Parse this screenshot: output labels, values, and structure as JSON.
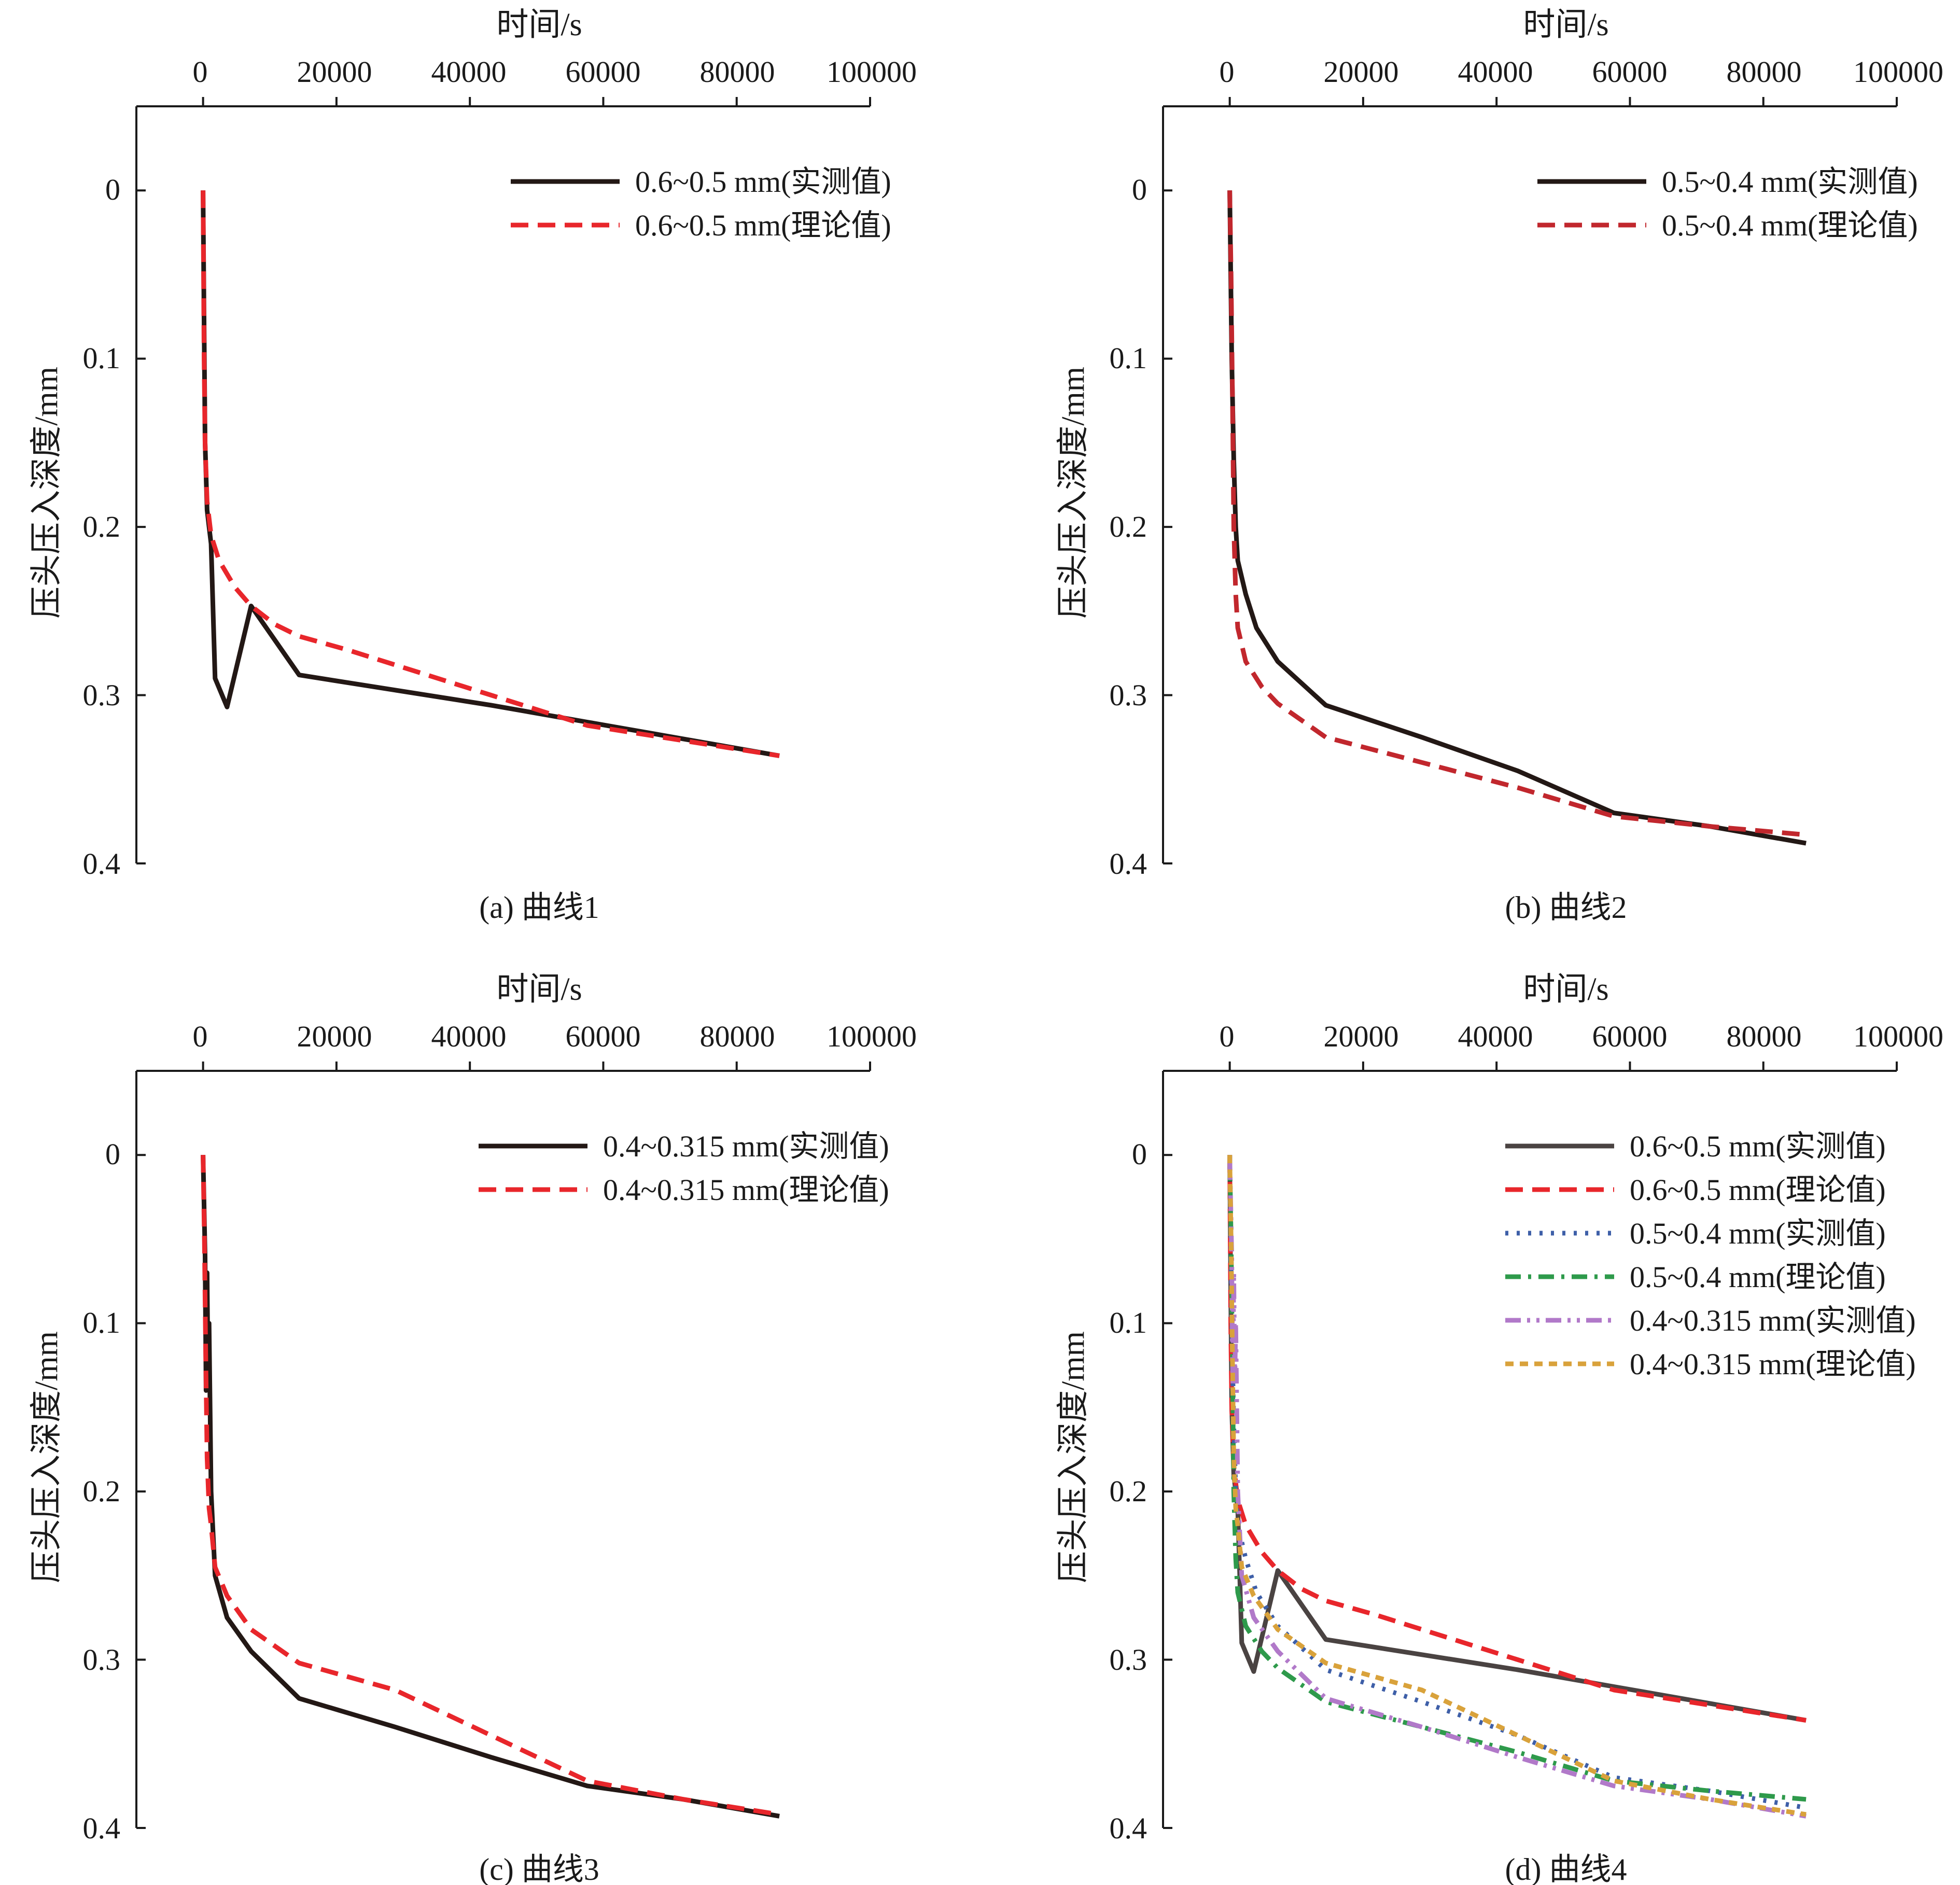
{
  "figure": {
    "panels": [
      {
        "caption": "(a) 曲线1",
        "xlabel": "时间/s",
        "ylabel": "压头压入深度/mm",
        "x_ticks": [
          "0",
          "20000",
          "40000",
          "60000",
          "80000",
          "100000"
        ],
        "y_ticks": [
          "0",
          "0.1",
          "0.2",
          "0.3",
          "0.4"
        ]
      },
      {
        "caption": "(b) 曲线2",
        "xlabel": "时间/s",
        "ylabel": "压头压入深度/mm",
        "x_ticks": [
          "0",
          "20000",
          "40000",
          "60000",
          "80000",
          "100000"
        ],
        "y_ticks": [
          "0",
          "0.1",
          "0.2",
          "0.3",
          "0.4"
        ]
      },
      {
        "caption": "(c) 曲线3",
        "xlabel": "时间/s",
        "ylabel": "压头压入深度/mm",
        "x_ticks": [
          "0",
          "20000",
          "40000",
          "60000",
          "80000",
          "100000"
        ],
        "y_ticks": [
          "0",
          "0.1",
          "0.2",
          "0.3",
          "0.4"
        ]
      },
      {
        "caption": "(d) 曲线4",
        "xlabel": "时间/s",
        "ylabel": "压头压入深度/mm",
        "x_ticks": [
          "0",
          "20000",
          "40000",
          "60000",
          "80000",
          "100000"
        ],
        "y_ticks": [
          "0",
          "0.1",
          "0.2",
          "0.3",
          "0.4"
        ]
      }
    ]
  },
  "chart_data": [
    {
      "type": "line",
      "caption": "(a) 曲线1",
      "xlabel": "时间/s",
      "ylabel": "压头压入深度/mm",
      "xlim": [
        -10000,
        100000
      ],
      "ylim": [
        -0.05,
        0.4
      ],
      "x_axis_position": "top",
      "y_inverted": true,
      "grid": false,
      "legend_position": "top-right",
      "series": [
        {
          "name": "0.6~0.5 mm(实测值)",
          "color": "#231815",
          "dash": "solid",
          "x": [
            0,
            150,
            300,
            600,
            900,
            1200,
            1800,
            3600,
            7200,
            14400,
            28800,
            43200,
            57600,
            72000,
            86400
          ],
          "y": [
            0,
            0.08,
            0.15,
            0.19,
            0.2,
            0.21,
            0.29,
            0.307,
            0.247,
            0.288,
            0.297,
            0.306,
            0.316,
            0.326,
            0.336
          ]
        },
        {
          "name": "0.6~0.5 mm(理论值)",
          "color": "#e8262b",
          "dash": "dashed",
          "x": [
            0,
            150,
            300,
            600,
            1200,
            2400,
            4800,
            7200,
            10800,
            14400,
            21600,
            28800,
            43200,
            57600,
            72000,
            86400
          ],
          "y": [
            0,
            0.1,
            0.15,
            0.185,
            0.205,
            0.22,
            0.236,
            0.247,
            0.258,
            0.265,
            0.273,
            0.282,
            0.3,
            0.318,
            0.327,
            0.336
          ]
        }
      ]
    },
    {
      "type": "line",
      "caption": "(b) 曲线2",
      "xlabel": "时间/s",
      "ylabel": "压头压入深度/mm",
      "xlim": [
        -10000,
        100000
      ],
      "ylim": [
        -0.05,
        0.4
      ],
      "x_axis_position": "top",
      "y_inverted": true,
      "grid": false,
      "legend_position": "top-right",
      "series": [
        {
          "name": "0.5~0.4 mm(实测值)",
          "color": "#231815",
          "dash": "solid",
          "x": [
            0,
            300,
            600,
            900,
            1200,
            2400,
            4000,
            7200,
            14400,
            28800,
            43200,
            57600,
            72000,
            86400
          ],
          "y": [
            0,
            0.1,
            0.16,
            0.2,
            0.22,
            0.24,
            0.26,
            0.28,
            0.306,
            0.325,
            0.345,
            0.37,
            0.378,
            0.388
          ]
        },
        {
          "name": "0.5~0.4 mm(理论值)",
          "color": "#c1272d",
          "dash": "dashed",
          "x": [
            0,
            200,
            400,
            600,
            900,
            1200,
            2400,
            4800,
            7200,
            14400,
            28800,
            43200,
            57600,
            72000,
            86400
          ],
          "y": [
            0,
            0.05,
            0.12,
            0.2,
            0.24,
            0.26,
            0.28,
            0.295,
            0.305,
            0.325,
            0.34,
            0.355,
            0.372,
            0.378,
            0.383
          ]
        }
      ]
    },
    {
      "type": "line",
      "caption": "(c) 曲线3",
      "xlabel": "时间/s",
      "ylabel": "压头压入深度/mm",
      "xlim": [
        -10000,
        100000
      ],
      "ylim": [
        -0.05,
        0.4
      ],
      "x_axis_position": "top",
      "y_inverted": true,
      "grid": false,
      "legend_position": "top-right",
      "series": [
        {
          "name": "0.4~0.315 mm(实测值)",
          "color": "#231815",
          "dash": "solid",
          "x": [
            0,
            300,
            450,
            600,
            750,
            900,
            1200,
            1800,
            3600,
            7200,
            14400,
            28800,
            43200,
            57600,
            72000,
            86400
          ],
          "y": [
            0,
            0.06,
            0.14,
            0.07,
            0.135,
            0.1,
            0.2,
            0.25,
            0.275,
            0.295,
            0.323,
            0.34,
            0.358,
            0.375,
            0.383,
            0.393
          ]
        },
        {
          "name": "0.4~0.315 mm(理论值)",
          "color": "#e8262b",
          "dash": "dashed",
          "x": [
            0,
            200,
            400,
            600,
            900,
            1200,
            1800,
            3600,
            7200,
            14400,
            28800,
            43200,
            57600,
            72000,
            86400
          ],
          "y": [
            0,
            0.05,
            0.12,
            0.18,
            0.21,
            0.22,
            0.245,
            0.262,
            0.282,
            0.302,
            0.318,
            0.345,
            0.372,
            0.383,
            0.392
          ]
        }
      ]
    },
    {
      "type": "line",
      "caption": "(d) 曲线4",
      "xlabel": "时间/s",
      "ylabel": "压头压入深度/mm",
      "xlim": [
        -10000,
        100000
      ],
      "ylim": [
        -0.05,
        0.4
      ],
      "x_axis_position": "top",
      "y_inverted": true,
      "grid": false,
      "legend_position": "top-right",
      "series": [
        {
          "name": "0.6~0.5 mm(实测值)",
          "color": "#4a4342",
          "dash": "solid",
          "x": [
            0,
            150,
            300,
            600,
            900,
            1200,
            1800,
            3600,
            7200,
            14400,
            28800,
            43200,
            57600,
            72000,
            86400
          ],
          "y": [
            0,
            0.08,
            0.15,
            0.19,
            0.2,
            0.21,
            0.29,
            0.307,
            0.247,
            0.288,
            0.297,
            0.306,
            0.316,
            0.326,
            0.336
          ]
        },
        {
          "name": "0.6~0.5 mm(理论值)",
          "color": "#e8262b",
          "dash": "dashed",
          "x": [
            0,
            150,
            300,
            600,
            1200,
            2400,
            4800,
            7200,
            10800,
            14400,
            21600,
            28800,
            43200,
            57600,
            72000,
            86400
          ],
          "y": [
            0,
            0.1,
            0.15,
            0.185,
            0.205,
            0.22,
            0.236,
            0.247,
            0.258,
            0.265,
            0.273,
            0.282,
            0.3,
            0.318,
            0.327,
            0.336
          ]
        },
        {
          "name": "0.5~0.4 mm(实测值)",
          "color": "#3e5fa8",
          "dash": "dotted",
          "x": [
            0,
            300,
            600,
            900,
            1200,
            2400,
            4000,
            7200,
            14400,
            28800,
            43200,
            57600,
            72000,
            86400
          ],
          "y": [
            0,
            0.1,
            0.16,
            0.2,
            0.22,
            0.24,
            0.26,
            0.28,
            0.306,
            0.325,
            0.345,
            0.37,
            0.378,
            0.388
          ]
        },
        {
          "name": "0.5~0.4 mm(理论值)",
          "color": "#2e9a4b",
          "dash": "dashdot",
          "x": [
            0,
            200,
            400,
            600,
            900,
            1200,
            2400,
            4800,
            7200,
            14400,
            28800,
            43200,
            57600,
            72000,
            86400
          ],
          "y": [
            0,
            0.05,
            0.12,
            0.2,
            0.24,
            0.26,
            0.28,
            0.295,
            0.305,
            0.325,
            0.34,
            0.355,
            0.372,
            0.378,
            0.383
          ]
        },
        {
          "name": "0.4~0.315 mm(实测值)",
          "color": "#b179c9",
          "dash": "dashdotdot",
          "x": [
            0,
            300,
            450,
            600,
            750,
            900,
            1200,
            1800,
            3600,
            7200,
            14400,
            28800,
            43200,
            57600,
            72000,
            86400
          ],
          "y": [
            0,
            0.06,
            0.14,
            0.07,
            0.135,
            0.1,
            0.2,
            0.25,
            0.275,
            0.295,
            0.323,
            0.34,
            0.358,
            0.375,
            0.383,
            0.393
          ]
        },
        {
          "name": "0.4~0.315 mm(理论值)",
          "color": "#d9a23b",
          "dash": "shortdash",
          "x": [
            0,
            200,
            400,
            600,
            900,
            1200,
            1800,
            3600,
            7200,
            14400,
            28800,
            43200,
            57600,
            72000,
            86400
          ],
          "y": [
            0,
            0.05,
            0.12,
            0.18,
            0.21,
            0.22,
            0.245,
            0.262,
            0.282,
            0.302,
            0.318,
            0.345,
            0.372,
            0.383,
            0.392
          ]
        }
      ]
    }
  ]
}
